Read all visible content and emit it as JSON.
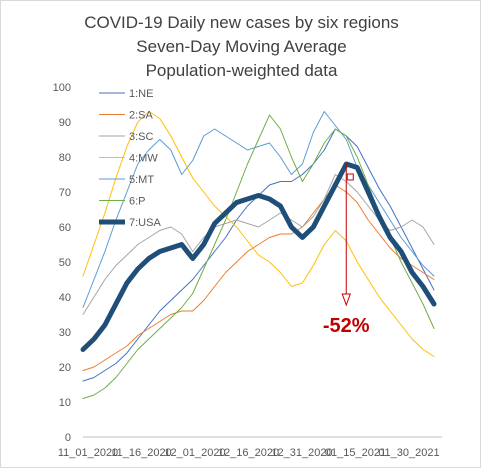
{
  "chart_data": {
    "type": "line",
    "title": [
      "COVID-19 Daily new cases by six regions",
      "Seven-Day Moving Average",
      "Population-weighted data"
    ],
    "ylim": [
      0,
      100
    ],
    "yticks": [
      0,
      10,
      20,
      30,
      40,
      50,
      60,
      70,
      80,
      90,
      100
    ],
    "xticks": [
      "11_01_2020",
      "11_16_2020",
      "12_01_2020",
      "12_16_2020",
      "12_31_2020",
      "01_15_2021",
      "01_30_2021"
    ],
    "x": [
      "11_01_2020",
      "11_04_2020",
      "11_07_2020",
      "11_10_2020",
      "11_13_2020",
      "11_16_2020",
      "11_19_2020",
      "11_22_2020",
      "11_25_2020",
      "11_28_2020",
      "12_01_2020",
      "12_04_2020",
      "12_07_2020",
      "12_10_2020",
      "12_13_2020",
      "12_16_2020",
      "12_19_2020",
      "12_22_2020",
      "12_25_2020",
      "12_28_2020",
      "12_31_2020",
      "01_03_2021",
      "01_06_2021",
      "01_09_2021",
      "01_12_2021",
      "01_15_2021",
      "01_18_2021",
      "01_21_2021",
      "01_24_2021",
      "01_27_2021",
      "01_30_2021",
      "02_02_2021",
      "02_05_2021"
    ],
    "grid": false,
    "legend": "top-left",
    "series": [
      {
        "name": "1:NE",
        "color": "#4472c4",
        "width": 1,
        "values": [
          16,
          17,
          19,
          21,
          24,
          28,
          32,
          36,
          39,
          42,
          45,
          49,
          53,
          57,
          62,
          66,
          69,
          72,
          73,
          73,
          75,
          78,
          82,
          88,
          86,
          83,
          77,
          71,
          66,
          60,
          54,
          48,
          42
        ]
      },
      {
        "name": "2:SA",
        "color": "#ed7d31",
        "width": 1,
        "values": [
          19,
          20,
          22,
          24,
          26,
          29,
          31,
          33,
          35,
          36,
          36,
          39,
          43,
          47,
          50,
          53,
          55,
          57,
          58,
          58,
          60,
          64,
          68,
          72,
          70,
          67,
          62,
          58,
          54,
          51,
          49,
          47,
          45
        ]
      },
      {
        "name": "3:SC",
        "color": "#a5a5a5",
        "width": 1,
        "values": [
          35,
          40,
          45,
          49,
          52,
          55,
          57,
          59,
          60,
          58,
          53,
          57,
          60,
          61,
          62,
          61,
          60,
          62,
          64,
          62,
          60,
          63,
          68,
          75,
          73,
          70,
          66,
          62,
          59,
          60,
          62,
          60,
          55
        ]
      },
      {
        "name": "4:MW",
        "color": "#ffc000",
        "width": 1,
        "values": [
          46,
          55,
          64,
          74,
          83,
          90,
          93,
          91,
          86,
          80,
          74,
          70,
          66,
          63,
          60,
          56,
          52,
          50,
          47,
          43,
          44,
          49,
          55,
          59,
          56,
          50,
          45,
          40,
          36,
          32,
          28,
          25,
          23
        ]
      },
      {
        "name": "5:MT",
        "color": "#5b9bd5",
        "width": 1,
        "values": [
          37,
          45,
          53,
          62,
          70,
          78,
          82,
          85,
          82,
          75,
          79,
          86,
          88,
          86,
          84,
          82,
          83,
          84,
          80,
          75,
          78,
          87,
          93,
          89,
          85,
          77,
          72,
          67,
          62,
          57,
          53,
          49,
          46
        ]
      },
      {
        "name": "6:P",
        "color": "#70ad47",
        "width": 1,
        "values": [
          11,
          12,
          14,
          17,
          21,
          25,
          28,
          31,
          34,
          37,
          41,
          48,
          55,
          62,
          70,
          78,
          85,
          92,
          88,
          80,
          73,
          78,
          84,
          88,
          86,
          80,
          72,
          64,
          57,
          50,
          44,
          38,
          31
        ]
      },
      {
        "name": "7:USA",
        "color": "#1f4e79",
        "width": 5,
        "values": [
          25,
          28,
          32,
          38,
          44,
          48,
          51,
          53,
          54,
          55,
          51,
          55,
          61,
          64,
          67,
          68,
          69,
          68,
          66,
          60,
          57,
          60,
          66,
          72,
          78,
          77,
          70,
          63,
          57,
          53,
          47,
          43,
          38
        ]
      }
    ],
    "annotation": {
      "label": "-52%",
      "from_index": 24,
      "from_value": 78,
      "to_value": 38
    }
  }
}
